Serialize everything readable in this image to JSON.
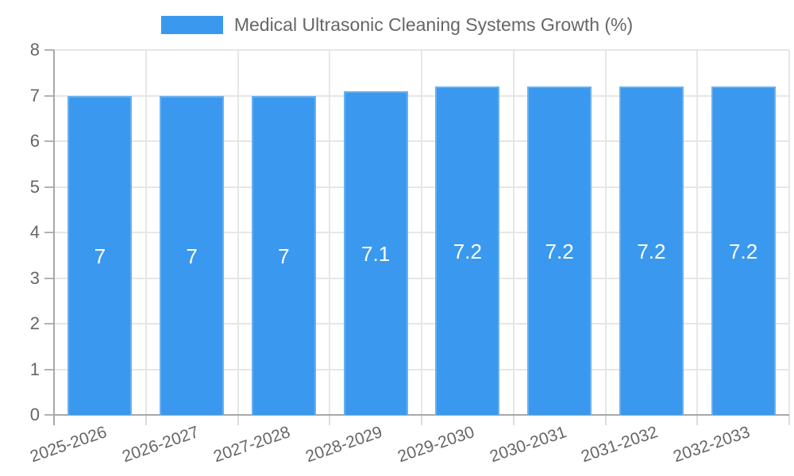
{
  "chart_data": {
    "type": "bar",
    "title": "Medical Ultrasonic Cleaning Systems Growth (%)",
    "legend_position": "top",
    "categories": [
      "2025-2026",
      "2026-2027",
      "2027-2028",
      "2028-2029",
      "2029-2030",
      "2030-2031",
      "2031-2032",
      "2032-2033"
    ],
    "series": [
      {
        "name": "Medical Ultrasonic Cleaning Systems Growth (%)",
        "values": [
          7,
          7,
          7,
          7.1,
          7.2,
          7.2,
          7.2,
          7.2
        ]
      }
    ],
    "value_labels": [
      "7",
      "7",
      "7",
      "7.1",
      "7.2",
      "7.2",
      "7.2",
      "7.2"
    ],
    "xlabel": "",
    "ylabel": "",
    "ylim": [
      0,
      8
    ],
    "ytick_step": 1,
    "ytick_labels": [
      "0",
      "1",
      "2",
      "3",
      "4",
      "5",
      "6",
      "7",
      "8"
    ],
    "grid": true,
    "colors": {
      "bar": "#3A99EE",
      "bar_border": "#69B0F1",
      "grid": "#E6E6E6",
      "axis": "#A8A8A8",
      "y_tick": "#B2B2B2",
      "x_tick": "#DCDCDC",
      "text": "#666666",
      "value_label": "#FFFFFF",
      "background": "#FFFFFF"
    }
  }
}
